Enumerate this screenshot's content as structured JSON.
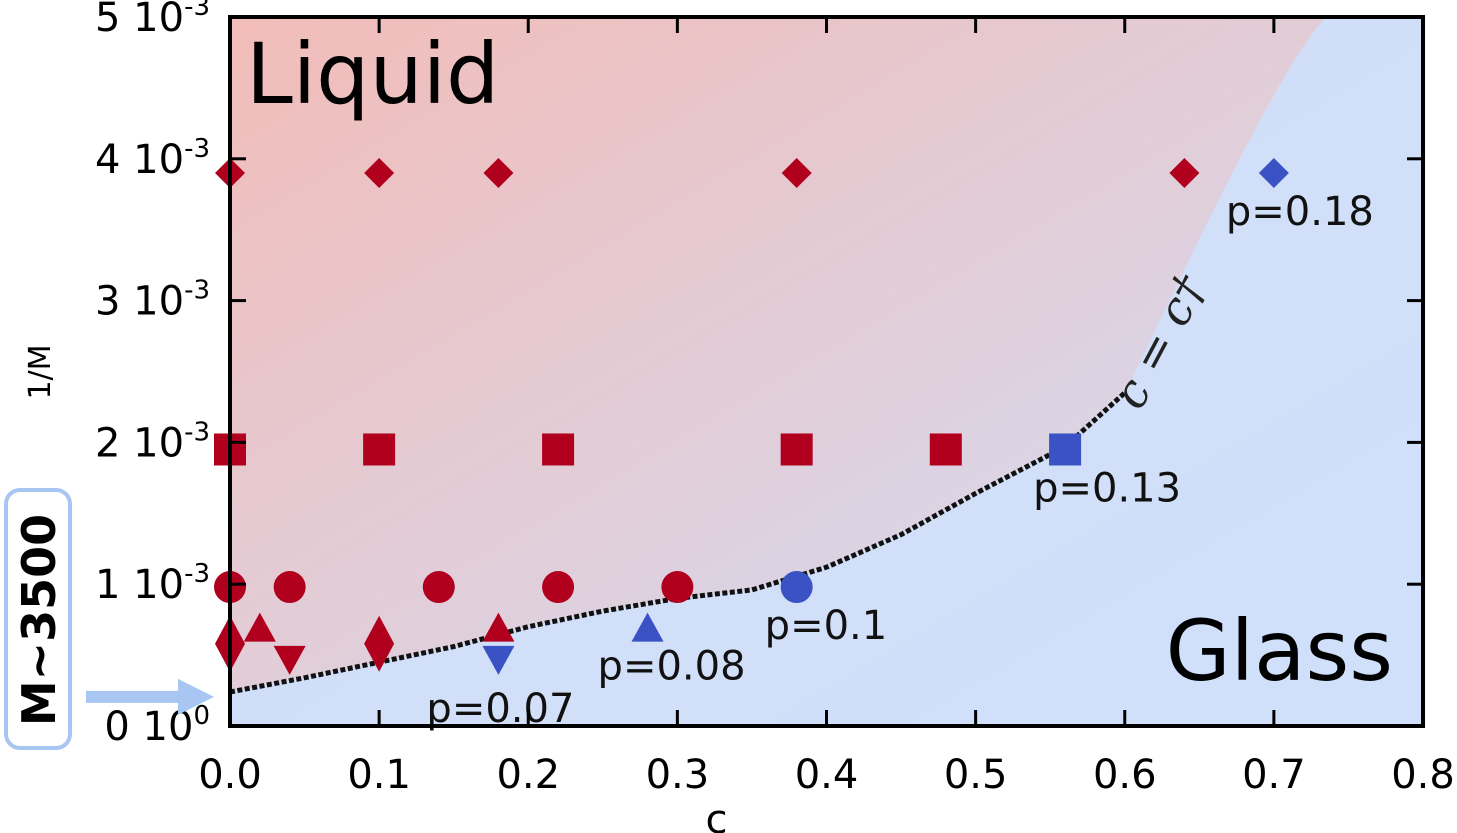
{
  "chart_data": {
    "type": "scatter",
    "xlabel": "c",
    "ylabel": "1/M",
    "xlim": [
      0.0,
      0.8
    ],
    "ylim": [
      0.0,
      0.005
    ],
    "x_ticks": [
      "0.0",
      "0.1",
      "0.2",
      "0.3",
      "0.4",
      "0.5",
      "0.6",
      "0.7",
      "0.8"
    ],
    "y_ticks": [
      {
        "mant": "0",
        "exp": "0",
        "v": 0.0
      },
      {
        "mant": "1",
        "exp": "-3",
        "v": 0.001
      },
      {
        "mant": "2",
        "exp": "-3",
        "v": 0.002
      },
      {
        "mant": "3",
        "exp": "-3",
        "v": 0.003
      },
      {
        "mant": "4",
        "exp": "-3",
        "v": 0.004
      },
      {
        "mant": "5",
        "exp": "-3",
        "v": 0.005
      }
    ],
    "regions": {
      "liquid": "Liquid",
      "glass": "Glass"
    },
    "colors": {
      "liquid": "#b0001e",
      "glass": "#3a52c4",
      "bg_liquid": "#f2bcb8",
      "bg_glass": "#cfe0fb",
      "arrow": "#a7c6f2"
    },
    "boundary_label": "c = c†",
    "boundary_curve": [
      {
        "x": 0.0,
        "y": 0.00024
      },
      {
        "x": 0.05,
        "y": 0.00034
      },
      {
        "x": 0.1,
        "y": 0.00045
      },
      {
        "x": 0.15,
        "y": 0.00056
      },
      {
        "x": 0.2,
        "y": 0.0007
      },
      {
        "x": 0.25,
        "y": 0.00081
      },
      {
        "x": 0.3,
        "y": 0.0009
      },
      {
        "x": 0.35,
        "y": 0.00096
      },
      {
        "x": 0.4,
        "y": 0.00112
      },
      {
        "x": 0.45,
        "y": 0.00135
      },
      {
        "x": 0.5,
        "y": 0.00164
      },
      {
        "x": 0.56,
        "y": 0.00197
      },
      {
        "x": 0.6,
        "y": 0.00235
      }
    ],
    "series": [
      {
        "marker": "diamond",
        "state": "liquid",
        "points": [
          {
            "x": 0.0,
            "y": 0.0039
          },
          {
            "x": 0.1,
            "y": 0.0039
          },
          {
            "x": 0.18,
            "y": 0.0039
          },
          {
            "x": 0.38,
            "y": 0.0039
          },
          {
            "x": 0.64,
            "y": 0.0039
          }
        ]
      },
      {
        "marker": "diamond",
        "state": "glass",
        "points": [
          {
            "x": 0.7,
            "y": 0.0039
          }
        ]
      },
      {
        "marker": "square",
        "state": "liquid",
        "points": [
          {
            "x": 0.0,
            "y": 0.00195
          },
          {
            "x": 0.1,
            "y": 0.00195
          },
          {
            "x": 0.22,
            "y": 0.00195
          },
          {
            "x": 0.38,
            "y": 0.00195
          },
          {
            "x": 0.48,
            "y": 0.00195
          }
        ]
      },
      {
        "marker": "square",
        "state": "glass",
        "points": [
          {
            "x": 0.56,
            "y": 0.00195
          }
        ]
      },
      {
        "marker": "circle",
        "state": "liquid",
        "points": [
          {
            "x": 0.0,
            "y": 0.00098
          },
          {
            "x": 0.04,
            "y": 0.00098
          },
          {
            "x": 0.14,
            "y": 0.00098
          },
          {
            "x": 0.22,
            "y": 0.00098
          },
          {
            "x": 0.3,
            "y": 0.00098
          }
        ]
      },
      {
        "marker": "circle",
        "state": "glass",
        "points": [
          {
            "x": 0.38,
            "y": 0.00098
          }
        ]
      },
      {
        "marker": "thin-diamond",
        "state": "liquid",
        "points": [
          {
            "x": 0.0,
            "y": 0.00058
          },
          {
            "x": 0.1,
            "y": 0.00058
          }
        ]
      },
      {
        "marker": "triangle-up",
        "state": "liquid",
        "points": [
          {
            "x": 0.02,
            "y": 0.00068
          },
          {
            "x": 0.18,
            "y": 0.00068
          }
        ]
      },
      {
        "marker": "triangle-up",
        "state": "glass",
        "points": [
          {
            "x": 0.28,
            "y": 0.00068
          }
        ]
      },
      {
        "marker": "triangle-down",
        "state": "liquid",
        "points": [
          {
            "x": 0.04,
            "y": 0.00048
          }
        ]
      },
      {
        "marker": "triangle-down",
        "state": "glass",
        "points": [
          {
            "x": 0.18,
            "y": 0.00048
          }
        ]
      }
    ],
    "annotations": [
      {
        "text": "p=0.18",
        "x": 0.7,
        "y": 0.0039
      },
      {
        "text": "p=0.13",
        "x": 0.56,
        "y": 0.00195
      },
      {
        "text": "p=0.1",
        "x": 0.38,
        "y": 0.00098
      },
      {
        "text": "p=0.08",
        "x": 0.28,
        "y": 0.00068
      },
      {
        "text": "p=0.07",
        "x": 0.18,
        "y": 0.00048
      }
    ],
    "callout": {
      "text": "M~3500",
      "y": 0.00029
    }
  }
}
